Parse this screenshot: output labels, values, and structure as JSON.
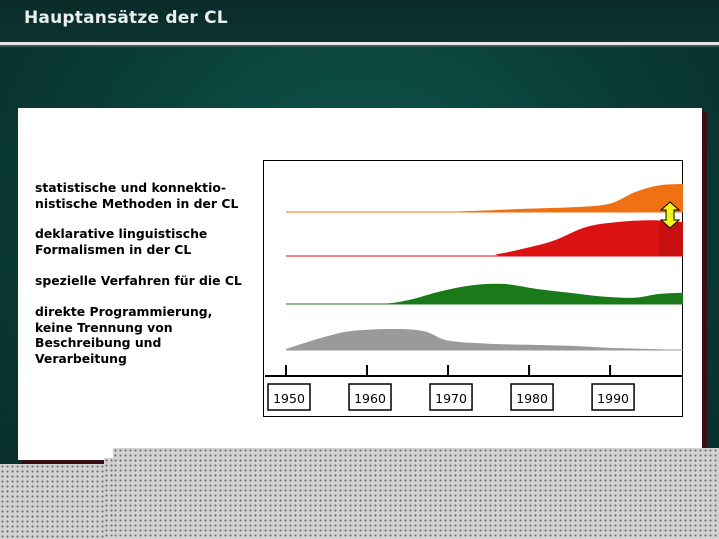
{
  "slide": {
    "title": "Hauptansätze der CL"
  },
  "legend": [
    {
      "text": "statistische und konnektio-\nnistische Methoden in der CL"
    },
    {
      "text": "deklarative linguistische\nFormalismen in der CL"
    },
    {
      "text": "spezielle Verfahren für die CL"
    },
    {
      "text": "direkte Programmierung,\nkeine Trennung von\nBeschreibung und\nVerarbeitung"
    }
  ],
  "colors": {
    "accent_dark_green": "#0a3d36",
    "statistical": "#f07014",
    "declarative": "#dc1212",
    "special": "#1a7a1a",
    "direct": "#9a9a9a",
    "arrow": "#f4f414"
  },
  "chart_data": {
    "type": "area",
    "x_ticks": [
      "1950",
      "1960",
      "1970",
      "1980",
      "1990"
    ],
    "xlim": [
      1950,
      1999
    ],
    "series": [
      {
        "name": "statistische und konnektionistische Methoden in der CL",
        "color": "#f07014",
        "x": [
          1950,
          1967,
          1974,
          1980,
          1986,
          1990,
          1993,
          1996,
          1999
        ],
        "values": [
          0,
          0,
          0.05,
          0.12,
          0.18,
          0.3,
          0.7,
          0.95,
          1.0
        ]
      },
      {
        "name": "deklarative linguistische Formalismen in der CL",
        "color": "#dc1212",
        "x": [
          1950,
          1974,
          1976,
          1979,
          1983,
          1987,
          1991,
          1995,
          1999
        ],
        "values": [
          0,
          0,
          0.05,
          0.2,
          0.45,
          0.85,
          1.0,
          1.05,
          1.0
        ]
      },
      {
        "name": "spezielle Verfahren für die CL",
        "color": "#1a7a1a",
        "x": [
          1950,
          1961,
          1965,
          1969,
          1973,
          1977,
          1981,
          1985,
          1989,
          1993,
          1996,
          1999
        ],
        "values": [
          0,
          0,
          0.15,
          0.5,
          0.75,
          0.8,
          0.6,
          0.45,
          0.3,
          0.25,
          0.4,
          0.45
        ]
      },
      {
        "name": "direkte Programmierung, keine Trennung von Beschreibung und Verarbeitung",
        "color": "#9a9a9a",
        "x": [
          1950,
          1952,
          1955,
          1958,
          1963,
          1967,
          1970,
          1975,
          1980,
          1985,
          1990,
          1995,
          1999
        ],
        "values": [
          0.05,
          0.3,
          0.65,
          0.9,
          1.0,
          0.9,
          0.45,
          0.3,
          0.25,
          0.2,
          0.1,
          0.05,
          0
        ]
      }
    ]
  }
}
